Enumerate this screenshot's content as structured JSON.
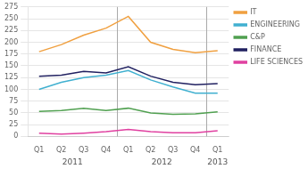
{
  "chart_data": {
    "type": "line",
    "categories": [
      "Q1",
      "Q2",
      "Q3",
      "Q4",
      "Q1",
      "Q2",
      "Q3",
      "Q4",
      "Q1"
    ],
    "series": [
      {
        "name": "IT",
        "color": "#F0A040",
        "values": [
          180,
          195,
          215,
          230,
          255,
          200,
          185,
          178,
          182
        ]
      },
      {
        "name": "ENGINEERING",
        "color": "#40B0D0",
        "values": [
          100,
          115,
          125,
          130,
          140,
          120,
          105,
          92,
          92
        ]
      },
      {
        "name": "C&P",
        "color": "#50A050",
        "values": [
          53,
          55,
          60,
          55,
          60,
          50,
          47,
          48,
          52
        ]
      },
      {
        "name": "FINANCE",
        "color": "#202060",
        "values": [
          128,
          130,
          138,
          135,
          148,
          128,
          115,
          110,
          112
        ]
      },
      {
        "name": "LIFE SCIENCES",
        "color": "#E040A0",
        "values": [
          7,
          5,
          7,
          10,
          15,
          10,
          8,
          8,
          12
        ]
      }
    ],
    "annotations": [
      {
        "text": "2011",
        "x": 1.5
      },
      {
        "text": "2012",
        "x": 5.5
      },
      {
        "text": "2013",
        "x": 8.0
      }
    ],
    "vlines": [
      3.5,
      7.5
    ],
    "ylim": [
      0,
      275
    ],
    "yticks": [
      0,
      25,
      50,
      75,
      100,
      125,
      150,
      175,
      200,
      225,
      250,
      275
    ],
    "grid": true,
    "legend": "right"
  }
}
